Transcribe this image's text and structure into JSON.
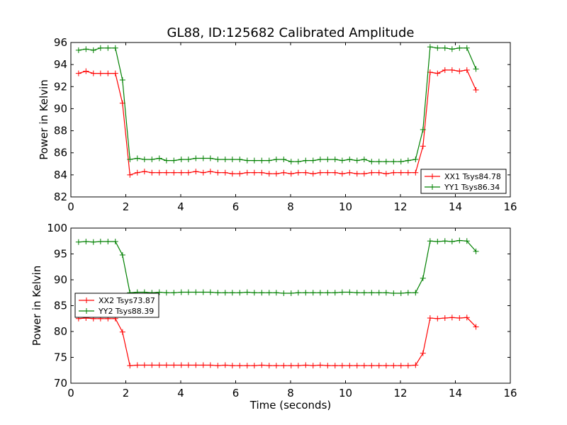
{
  "figure": {
    "title": "GL88, ID:125682 Calibrated Amplitude",
    "xlabel": "Time (seconds)"
  },
  "chart_data": [
    {
      "type": "line",
      "ylabel": "Power in Kelvin",
      "xlim": [
        0,
        16
      ],
      "ylim": [
        82,
        96
      ],
      "xticks": [
        0,
        2,
        4,
        6,
        8,
        10,
        12,
        14,
        16
      ],
      "yticks": [
        82,
        84,
        86,
        88,
        90,
        92,
        94,
        96
      ],
      "legend_position": "lower-right",
      "x": [
        0.28,
        0.55,
        0.82,
        1.08,
        1.35,
        1.62,
        1.88,
        2.15,
        2.42,
        2.68,
        2.95,
        3.22,
        3.48,
        3.75,
        4.02,
        4.28,
        4.55,
        4.82,
        5.08,
        5.35,
        5.62,
        5.88,
        6.15,
        6.42,
        6.68,
        6.95,
        7.22,
        7.48,
        7.75,
        8.02,
        8.28,
        8.55,
        8.82,
        9.08,
        9.35,
        9.62,
        9.88,
        10.15,
        10.42,
        10.68,
        10.95,
        11.22,
        11.48,
        11.75,
        12.02,
        12.28,
        12.55,
        12.82,
        13.08,
        13.35,
        13.62,
        13.88,
        14.15,
        14.42,
        14.75
      ],
      "series": [
        {
          "name": "XX1 Tsys84.78",
          "color": "#ff0000",
          "values": [
            93.2,
            93.4,
            93.2,
            93.2,
            93.2,
            93.2,
            90.5,
            84.0,
            84.2,
            84.3,
            84.2,
            84.2,
            84.2,
            84.2,
            84.2,
            84.2,
            84.3,
            84.2,
            84.3,
            84.2,
            84.2,
            84.1,
            84.1,
            84.2,
            84.2,
            84.2,
            84.1,
            84.1,
            84.2,
            84.1,
            84.2,
            84.2,
            84.1,
            84.2,
            84.2,
            84.2,
            84.1,
            84.2,
            84.1,
            84.1,
            84.2,
            84.2,
            84.1,
            84.2,
            84.2,
            84.2,
            84.2,
            86.6,
            93.3,
            93.2,
            93.5,
            93.5,
            93.4,
            93.5,
            91.7
          ]
        },
        {
          "name": "YY1 Tsys86.34",
          "color": "#008000",
          "values": [
            95.3,
            95.4,
            95.3,
            95.5,
            95.5,
            95.5,
            92.6,
            85.4,
            85.5,
            85.4,
            85.4,
            85.5,
            85.3,
            85.3,
            85.4,
            85.4,
            85.5,
            85.5,
            85.5,
            85.4,
            85.4,
            85.4,
            85.4,
            85.3,
            85.3,
            85.3,
            85.3,
            85.4,
            85.4,
            85.2,
            85.2,
            85.3,
            85.3,
            85.4,
            85.4,
            85.4,
            85.3,
            85.4,
            85.3,
            85.4,
            85.2,
            85.2,
            85.2,
            85.2,
            85.2,
            85.3,
            85.4,
            88.1,
            95.6,
            95.5,
            95.5,
            95.4,
            95.5,
            95.5,
            93.6
          ]
        }
      ]
    },
    {
      "type": "line",
      "ylabel": "Power in Kelvin",
      "xlabel": "Time (seconds)",
      "xlim": [
        0,
        16
      ],
      "ylim": [
        70,
        100
      ],
      "xticks": [
        0,
        2,
        4,
        6,
        8,
        10,
        12,
        14,
        16
      ],
      "yticks": [
        70,
        75,
        80,
        85,
        90,
        95,
        100
      ],
      "legend_position": "middle-left",
      "x": [
        0.28,
        0.55,
        0.82,
        1.08,
        1.35,
        1.62,
        1.88,
        2.15,
        2.42,
        2.68,
        2.95,
        3.22,
        3.48,
        3.75,
        4.02,
        4.28,
        4.55,
        4.82,
        5.08,
        5.35,
        5.62,
        5.88,
        6.15,
        6.42,
        6.68,
        6.95,
        7.22,
        7.48,
        7.75,
        8.02,
        8.28,
        8.55,
        8.82,
        9.08,
        9.35,
        9.62,
        9.88,
        10.15,
        10.42,
        10.68,
        10.95,
        11.22,
        11.48,
        11.75,
        12.02,
        12.28,
        12.55,
        12.82,
        13.08,
        13.35,
        13.62,
        13.88,
        14.15,
        14.42,
        14.75
      ],
      "series": [
        {
          "name": "XX2 Tsys73.87",
          "color": "#ff0000",
          "values": [
            82.5,
            82.6,
            82.5,
            82.5,
            82.5,
            82.5,
            79.9,
            73.4,
            73.5,
            73.5,
            73.5,
            73.5,
            73.5,
            73.5,
            73.5,
            73.5,
            73.5,
            73.5,
            73.5,
            73.4,
            73.5,
            73.4,
            73.4,
            73.4,
            73.4,
            73.5,
            73.4,
            73.4,
            73.4,
            73.4,
            73.4,
            73.5,
            73.4,
            73.5,
            73.4,
            73.4,
            73.4,
            73.4,
            73.4,
            73.4,
            73.4,
            73.4,
            73.4,
            73.4,
            73.4,
            73.4,
            73.5,
            75.8,
            82.6,
            82.5,
            82.6,
            82.7,
            82.6,
            82.7,
            80.9
          ]
        },
        {
          "name": "YY2 Tsys88.39",
          "color": "#008000",
          "values": [
            97.3,
            97.4,
            97.3,
            97.4,
            97.4,
            97.4,
            94.8,
            87.5,
            87.6,
            87.6,
            87.5,
            87.6,
            87.5,
            87.5,
            87.6,
            87.6,
            87.6,
            87.6,
            87.6,
            87.5,
            87.5,
            87.5,
            87.5,
            87.6,
            87.5,
            87.5,
            87.5,
            87.5,
            87.4,
            87.4,
            87.5,
            87.5,
            87.5,
            87.5,
            87.5,
            87.5,
            87.6,
            87.6,
            87.5,
            87.5,
            87.5,
            87.5,
            87.5,
            87.4,
            87.4,
            87.5,
            87.5,
            90.3,
            97.5,
            97.4,
            97.5,
            97.4,
            97.6,
            97.5,
            95.5
          ]
        }
      ]
    }
  ]
}
